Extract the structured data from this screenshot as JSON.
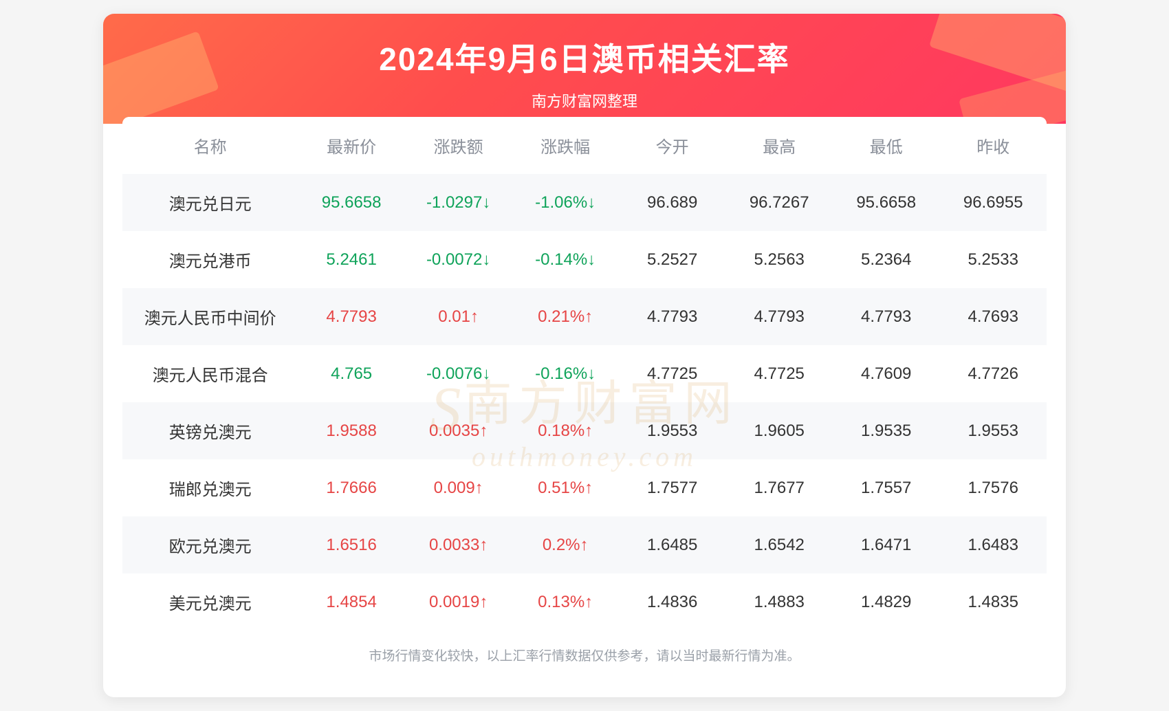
{
  "header": {
    "title": "2024年9月6日澳币相关汇率",
    "subtitle": "南方财富网整理",
    "bg_gradient": [
      "#ff6b4a",
      "#ff4d4d",
      "#ff3860"
    ],
    "title_color": "#ffffff",
    "title_fontsize": 46,
    "subtitle_fontsize": 22
  },
  "watermark": {
    "line1_prefix": "S",
    "line1": "南方财富网",
    "line2": "outhmoney.com",
    "color": "rgba(210,150,60,0.16)"
  },
  "table": {
    "header_color": "#8a8f99",
    "row_alt_bg": "#f7f8fa",
    "row_bg": "#ffffff",
    "up_color": "#e64545",
    "down_color": "#0fa35a",
    "text_color": "#333333",
    "fontsize": 24,
    "columns": [
      "名称",
      "最新价",
      "涨跌额",
      "涨跌幅",
      "今开",
      "最高",
      "最低",
      "昨收"
    ],
    "rows": [
      {
        "name": "澳元兑日元",
        "latest": "95.6658",
        "change_amt": "-1.0297↓",
        "change_pct": "-1.06%↓",
        "open": "96.689",
        "high": "96.7267",
        "low": "95.6658",
        "prev": "96.6955",
        "dir": "down"
      },
      {
        "name": "澳元兑港币",
        "latest": "5.2461",
        "change_amt": "-0.0072↓",
        "change_pct": "-0.14%↓",
        "open": "5.2527",
        "high": "5.2563",
        "low": "5.2364",
        "prev": "5.2533",
        "dir": "down"
      },
      {
        "name": "澳元人民币中间价",
        "latest": "4.7793",
        "change_amt": "0.01↑",
        "change_pct": "0.21%↑",
        "open": "4.7793",
        "high": "4.7793",
        "low": "4.7793",
        "prev": "4.7693",
        "dir": "up"
      },
      {
        "name": "澳元人民币混合",
        "latest": "4.765",
        "change_amt": "-0.0076↓",
        "change_pct": "-0.16%↓",
        "open": "4.7725",
        "high": "4.7725",
        "low": "4.7609",
        "prev": "4.7726",
        "dir": "down"
      },
      {
        "name": "英镑兑澳元",
        "latest": "1.9588",
        "change_amt": "0.0035↑",
        "change_pct": "0.18%↑",
        "open": "1.9553",
        "high": "1.9605",
        "low": "1.9535",
        "prev": "1.9553",
        "dir": "up"
      },
      {
        "name": "瑞郎兑澳元",
        "latest": "1.7666",
        "change_amt": "0.009↑",
        "change_pct": "0.51%↑",
        "open": "1.7577",
        "high": "1.7677",
        "low": "1.7557",
        "prev": "1.7576",
        "dir": "up"
      },
      {
        "name": "欧元兑澳元",
        "latest": "1.6516",
        "change_amt": "0.0033↑",
        "change_pct": "0.2%↑",
        "open": "1.6485",
        "high": "1.6542",
        "low": "1.6471",
        "prev": "1.6483",
        "dir": "up"
      },
      {
        "name": "美元兑澳元",
        "latest": "1.4854",
        "change_amt": "0.0019↑",
        "change_pct": "0.13%↑",
        "open": "1.4836",
        "high": "1.4883",
        "low": "1.4829",
        "prev": "1.4835",
        "dir": "up"
      }
    ]
  },
  "footnote": "市场行情变化较快，以上汇率行情数据仅供参考，请以当时最新行情为准。",
  "footnote_color": "#9aa0a8",
  "footnote_fontsize": 19
}
